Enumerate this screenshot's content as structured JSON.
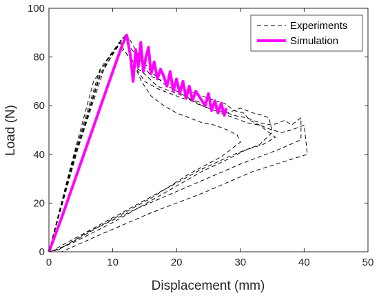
{
  "chart_data": {
    "type": "line",
    "title": "",
    "xlabel": "Displacement (mm)",
    "ylabel": "Load (N)",
    "xlim": [
      0,
      50
    ],
    "ylim": [
      0,
      100
    ],
    "xticks": [
      "0",
      "10",
      "20",
      "30",
      "40",
      "50"
    ],
    "yticks": [
      "0",
      "20",
      "40",
      "60",
      "80",
      "100"
    ],
    "grid": false,
    "legend_position": "top-right",
    "series": [
      {
        "name": "Experiments",
        "style": "dashed",
        "color": "#000000",
        "lines": [
          {
            "x": [
              0,
              4,
              8,
              11.5,
              13,
              14.5,
              16,
              18,
              20,
              22,
              24,
              26,
              27.5,
              29,
              30.5,
              31.5,
              33,
              34,
              35,
              35.5,
              33.5,
              31,
              28,
              24,
              18,
              10,
              4,
              0.5
            ],
            "y": [
              0,
              38,
              72,
              88,
              83,
              78,
              72,
              70,
              68,
              66,
              64,
              62,
              61,
              58,
              57,
              54,
              52,
              50,
              48,
              47,
              44,
              42,
              38,
              33,
              24,
              12,
              4,
              0
            ]
          },
          {
            "x": [
              0,
              4,
              8,
              11,
              12.5,
              13.5,
              15,
              17,
              19,
              21,
              23,
              25,
              27,
              29,
              31,
              33,
              35,
              37,
              38,
              39.5,
              39.5,
              36,
              30,
              22,
              14,
              6,
              1
            ],
            "y": [
              0,
              40,
              75,
              86,
              80,
              76,
              70,
              67,
              65,
              63,
              62,
              60,
              58,
              56,
              55,
              53,
              52,
              54,
              52,
              55,
              46,
              42,
              36,
              27,
              18,
              8,
              0
            ]
          },
          {
            "x": [
              0,
              3.5,
              7,
              10.5,
              12,
              13.5,
              15,
              17,
              19,
              21,
              23,
              25,
              27,
              29,
              31,
              33,
              35,
              36.5,
              38,
              40,
              40.5,
              38,
              32,
              24,
              16,
              8,
              2
            ],
            "y": [
              0,
              36,
              70,
              84,
              82,
              76,
              73,
              68,
              66,
              64,
              61,
              59,
              57,
              55,
              53,
              52,
              50,
              49,
              50,
              52,
              40,
              38,
              33,
              24,
              16,
              7,
              0
            ]
          },
          {
            "x": [
              0,
              4.5,
              9,
              12,
              13,
              14.5,
              16,
              18,
              20,
              22,
              24,
              26,
              28,
              29.5,
              30,
              27,
              22,
              16,
              9,
              3,
              0.3
            ],
            "y": [
              0,
              42,
              78,
              89,
              79,
              70,
              64,
              60,
              57,
              55,
              53,
              52,
              50,
              48,
              45,
              39,
              32,
              22,
              12,
              3,
              0
            ]
          },
          {
            "x": [
              0,
              4,
              8,
              11,
              12.5,
              14,
              16,
              18,
              20,
              22,
              24,
              26,
              28,
              30,
              32,
              33.5,
              34.5,
              35,
              33,
              29,
              24,
              17,
              10,
              3,
              0.2
            ],
            "y": [
              0,
              39,
              73,
              85,
              88,
              81,
              74,
              69,
              66,
              63,
              60,
              58,
              57,
              59,
              57,
              56,
              55,
              49,
              44,
              40,
              34,
              24,
              14,
              4,
              0
            ]
          }
        ]
      },
      {
        "name": "Simulation",
        "style": "solid",
        "color": "#ff00ff",
        "lines": [
          {
            "x": [
              0,
              2,
              4,
              6,
              8,
              10,
              11.5,
              12.2,
              12.8,
              13.2,
              13.6,
              14.0,
              14.4,
              14.8,
              15.2,
              15.6,
              16.0,
              16.5,
              17.0,
              17.5,
              18.0,
              18.5,
              19.0,
              19.5,
              20.0,
              20.5,
              21.0,
              21.5,
              22.0,
              22.5,
              23.0,
              23.5,
              24.0,
              24.5,
              25.0,
              25.5,
              26.0,
              26.5,
              27.0,
              27.5,
              27.8
            ],
            "y": [
              0,
              14,
              29,
              44,
              59,
              74,
              85,
              89,
              80,
              70,
              83,
              76,
              86,
              74,
              80,
              84,
              73,
              78,
              71,
              75,
              72,
              68,
              74,
              66,
              71,
              65,
              70,
              63,
              68,
              62,
              66,
              64,
              62,
              60,
              65,
              58,
              62,
              57,
              61,
              56,
              59
            ]
          }
        ]
      }
    ]
  }
}
